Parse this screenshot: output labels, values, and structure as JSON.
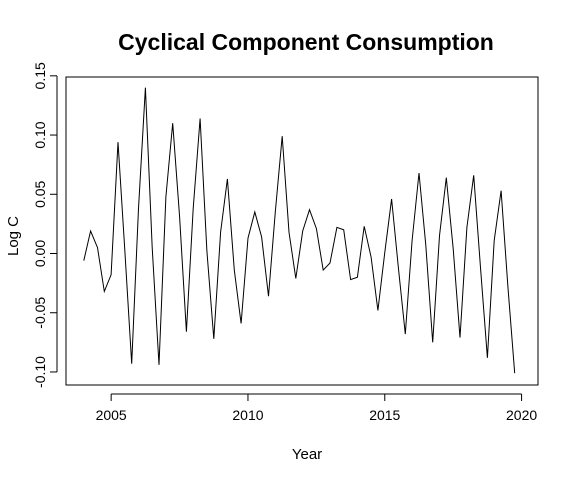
{
  "chart_data": {
    "type": "line",
    "title": "Cyclical Component Consumption",
    "xlabel": "Year",
    "ylabel": "Log C",
    "xlim": [
      2003.35,
      2020.6
    ],
    "ylim": [
      -0.111,
      0.149
    ],
    "xticks": [
      2005,
      2010,
      2015,
      2020
    ],
    "yticks": [
      -0.1,
      -0.05,
      0.0,
      0.05,
      0.1,
      0.15
    ],
    "xtick_labels": [
      "2005",
      "2010",
      "2015",
      "2020"
    ],
    "ytick_labels": [
      "-0.10",
      "-0.05",
      "0.00",
      "0.05",
      "0.10",
      "0.15"
    ],
    "grid": false,
    "series": [
      {
        "color": "#000000",
        "x": [
          2004.0,
          2004.25,
          2004.5,
          2004.75,
          2005.0,
          2005.25,
          2005.5,
          2005.75,
          2006.0,
          2006.25,
          2006.5,
          2006.75,
          2007.0,
          2007.25,
          2007.5,
          2007.75,
          2008.0,
          2008.25,
          2008.5,
          2008.75,
          2009.0,
          2009.25,
          2009.5,
          2009.75,
          2010.0,
          2010.25,
          2010.5,
          2010.75,
          2011.0,
          2011.25,
          2011.5,
          2011.75,
          2012.0,
          2012.25,
          2012.5,
          2012.75,
          2013.0,
          2013.25,
          2013.5,
          2013.75,
          2014.0,
          2014.25,
          2014.5,
          2014.75,
          2015.0,
          2015.25,
          2015.5,
          2015.75,
          2016.0,
          2016.25,
          2016.5,
          2016.75,
          2017.0,
          2017.25,
          2017.5,
          2017.75,
          2018.0,
          2018.25,
          2018.5,
          2018.75,
          2019.0,
          2019.25,
          2019.5,
          2019.75
        ],
        "y": [
          -0.006,
          0.019,
          0.005,
          -0.032,
          -0.018,
          0.094,
          0.003,
          -0.093,
          0.038,
          0.14,
          0.005,
          -0.094,
          0.048,
          0.11,
          0.031,
          -0.066,
          0.038,
          0.114,
          0.002,
          -0.072,
          0.018,
          0.063,
          -0.014,
          -0.059,
          0.013,
          0.035,
          0.014,
          -0.036,
          0.035,
          0.099,
          0.018,
          -0.021,
          0.019,
          0.037,
          0.021,
          -0.014,
          -0.008,
          0.022,
          0.02,
          -0.022,
          -0.02,
          0.023,
          -0.003,
          -0.048,
          0.001,
          0.046,
          -0.013,
          -0.068,
          0.011,
          0.068,
          0.007,
          -0.075,
          0.015,
          0.064,
          0.004,
          -0.071,
          0.022,
          0.066,
          -0.012,
          -0.088,
          0.011,
          0.053,
          -0.028,
          -0.101
        ]
      }
    ]
  }
}
